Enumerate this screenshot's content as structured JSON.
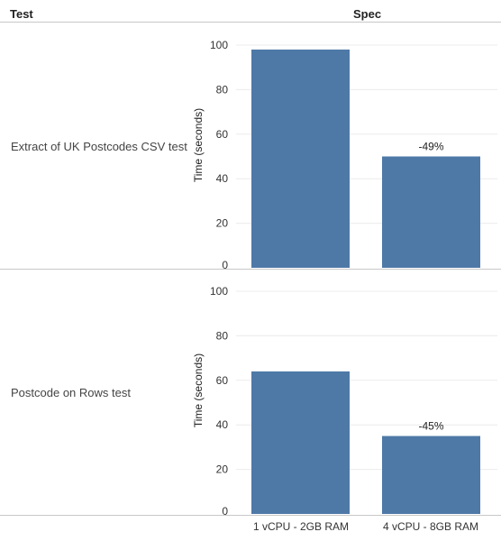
{
  "header": {
    "test_label": "Test",
    "spec_label": "Spec"
  },
  "colors": {
    "bar": "#4e79a7",
    "grid": "#ececec",
    "axis": "#c8c8c8",
    "text": "#333333"
  },
  "chart_data": {
    "type": "bar",
    "categories": [
      "1 vCPU - 2GB RAM",
      "4 vCPU - 8GB RAM"
    ],
    "ylabel": "Time (seconds)",
    "ylim": [
      0,
      100
    ],
    "yticks": [
      0,
      20,
      40,
      60,
      80,
      100
    ],
    "grid": true,
    "panels": [
      {
        "row_label": "Extract of UK Postcodes CSV test",
        "values": [
          98,
          50
        ],
        "annotations": [
          "",
          "-49%"
        ]
      },
      {
        "row_label": "Postcode on Rows test",
        "values": [
          64,
          35
        ],
        "annotations": [
          "",
          "-45%"
        ]
      }
    ]
  }
}
